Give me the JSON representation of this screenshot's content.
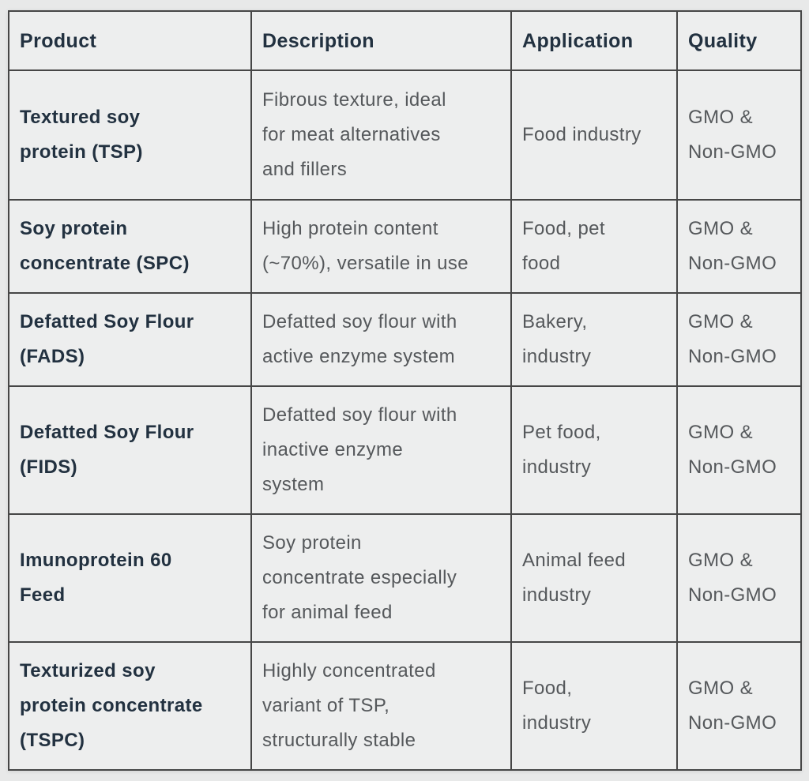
{
  "table": {
    "headers": {
      "product": "Product",
      "description": "Description",
      "application": "Application",
      "quality": "Quality"
    },
    "rows": [
      {
        "product": "Textured soy\nprotein (TSP)",
        "description": "Fibrous texture, ideal\nfor meat alternatives\nand fillers",
        "application": "Food industry",
        "quality": "GMO &\nNon-GMO"
      },
      {
        "product": "Soy protein\nconcentrate (SPC)",
        "description": "High protein content\n(~70%), versatile in use",
        "application": "Food, pet\nfood",
        "quality": "GMO &\nNon-GMO"
      },
      {
        "product": "Defatted Soy Flour\n(FADS)",
        "description": "Defatted soy flour with\nactive enzyme system",
        "application": "Bakery,\nindustry",
        "quality": "GMO &\nNon-GMO"
      },
      {
        "product": "Defatted Soy Flour\n(FIDS)",
        "description": "Defatted soy flour with\ninactive enzyme\nsystem",
        "application": "Pet food,\nindustry",
        "quality": "GMO &\nNon-GMO"
      },
      {
        "product": "Imunoprotein 60\nFeed",
        "description": "Soy protein\nconcentrate especially\nfor animal feed",
        "application": "Animal feed\nindustry",
        "quality": "GMO &\nNon-GMO"
      },
      {
        "product": "Texturized soy\nprotein concentrate\n(TSPC)",
        "description": "Highly concentrated\nvariant of TSP,\nstructurally stable",
        "application": "Food,\nindustry",
        "quality": "GMO &\nNon-GMO"
      }
    ]
  },
  "colors": {
    "page_bg": "#e8e9e9",
    "cell_bg": "#edeeee",
    "border": "#464646",
    "header_text": "#223140",
    "body_text": "#55585b"
  }
}
